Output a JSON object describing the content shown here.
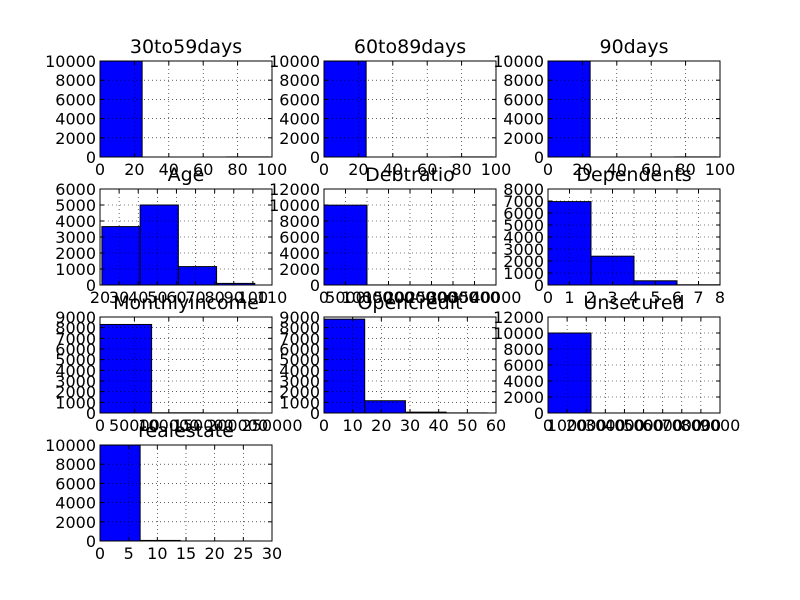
{
  "chart_data": [
    {
      "type": "bar",
      "title": "30to59days",
      "xlim": [
        0,
        100
      ],
      "ylim": [
        0,
        10000
      ],
      "xticks": [
        "0",
        "20",
        "40",
        "60",
        "80",
        "100"
      ],
      "yticks": [
        "0",
        "2000",
        "4000",
        "6000",
        "8000",
        "10000"
      ],
      "bins": [
        [
          0,
          24.5,
          9990
        ],
        [
          73.5,
          98,
          10
        ]
      ],
      "grid": true
    },
    {
      "type": "bar",
      "title": "60to89days",
      "xlim": [
        0,
        100
      ],
      "ylim": [
        0,
        10000
      ],
      "xticks": [
        "0",
        "20",
        "40",
        "60",
        "80",
        "100"
      ],
      "yticks": [
        "0",
        "2000",
        "4000",
        "6000",
        "8000",
        "10000"
      ],
      "bins": [
        [
          0,
          24.5,
          9990
        ],
        [
          73.5,
          98,
          10
        ]
      ],
      "grid": true
    },
    {
      "type": "bar",
      "title": "90days",
      "xlim": [
        0,
        100
      ],
      "ylim": [
        0,
        10000
      ],
      "xticks": [
        "0",
        "20",
        "40",
        "60",
        "80",
        "100"
      ],
      "yticks": [
        "0",
        "2000",
        "4000",
        "6000",
        "8000",
        "10000"
      ],
      "bins": [
        [
          0,
          24.5,
          9990
        ],
        [
          73.5,
          98,
          10
        ]
      ],
      "grid": true
    },
    {
      "type": "bar",
      "title": "Age",
      "xlim": [
        20,
        110
      ],
      "ylim": [
        0,
        6000
      ],
      "xticks": [
        "20",
        "30",
        "40",
        "50",
        "60",
        "70",
        "80",
        "90",
        "100",
        "110"
      ],
      "yticks": [
        "0",
        "1000",
        "2000",
        "3000",
        "4000",
        "5000",
        "6000"
      ],
      "bins": [
        [
          21,
          41,
          3650
        ],
        [
          41,
          61,
          5000
        ],
        [
          61,
          81,
          1150
        ],
        [
          81,
          101,
          100
        ]
      ],
      "grid": true
    },
    {
      "type": "bar",
      "title": "Debtratio",
      "xlim": [
        0,
        40000
      ],
      "ylim": [
        0,
        12000
      ],
      "xticks": [
        "0",
        "5000",
        "10000",
        "15000",
        "20000",
        "25000",
        "30000",
        "35000",
        "40000"
      ],
      "yticks": [
        "0",
        "2000",
        "4000",
        "6000",
        "8000",
        "10000",
        "12000"
      ],
      "bins": [
        [
          0,
          10000,
          9980
        ],
        [
          10000,
          20000,
          10
        ],
        [
          20000,
          30000,
          6
        ],
        [
          30000,
          40000,
          4
        ]
      ],
      "grid": true
    },
    {
      "type": "bar",
      "title": "Dependents",
      "xlim": [
        0,
        8
      ],
      "ylim": [
        0,
        8000
      ],
      "xticks": [
        "0",
        "1",
        "2",
        "3",
        "4",
        "5",
        "6",
        "7",
        "8"
      ],
      "yticks": [
        "0",
        "1000",
        "2000",
        "3000",
        "4000",
        "5000",
        "6000",
        "7000",
        "8000"
      ],
      "bins": [
        [
          0,
          2,
          6950
        ],
        [
          2,
          4,
          2400
        ],
        [
          4,
          6,
          350
        ],
        [
          6,
          8,
          20
        ]
      ],
      "grid": true
    },
    {
      "type": "bar",
      "title": "Monthlyincome",
      "xlim": [
        0,
        250000
      ],
      "ylim": [
        0,
        9000
      ],
      "xticks": [
        "0",
        "50000",
        "100000",
        "150000",
        "200000",
        "250000"
      ],
      "yticks": [
        "0",
        "1000",
        "2000",
        "3000",
        "4000",
        "5000",
        "6000",
        "7000",
        "8000",
        "9000"
      ],
      "bins": [
        [
          0,
          75000,
          8300
        ],
        [
          75000,
          150000,
          20
        ],
        [
          150000,
          225000,
          5
        ]
      ],
      "grid": true
    },
    {
      "type": "bar",
      "title": "Opencredit",
      "xlim": [
        0,
        60
      ],
      "ylim": [
        0,
        9000
      ],
      "xticks": [
        "0",
        "10",
        "20",
        "30",
        "40",
        "50",
        "60"
      ],
      "yticks": [
        "0",
        "1000",
        "2000",
        "3000",
        "4000",
        "5000",
        "6000",
        "7000",
        "8000",
        "9000"
      ],
      "bins": [
        [
          0,
          14.2,
          8800
        ],
        [
          14.2,
          28.4,
          1150
        ],
        [
          28.4,
          42.6,
          80
        ],
        [
          42.6,
          56.8,
          10
        ]
      ],
      "grid": true
    },
    {
      "type": "bar",
      "title": "Unsecured",
      "xlim": [
        0,
        9000
      ],
      "ylim": [
        0,
        12000
      ],
      "xticks": [
        "0",
        "1000",
        "2000",
        "3000",
        "4000",
        "5000",
        "6000",
        "7000",
        "8000",
        "9000"
      ],
      "yticks": [
        "0",
        "2000",
        "4000",
        "6000",
        "8000",
        "10000",
        "12000"
      ],
      "bins": [
        [
          0,
          2250,
          10000
        ],
        [
          2250,
          4500,
          3
        ],
        [
          4500,
          6750,
          2
        ],
        [
          6750,
          9000,
          1
        ]
      ],
      "grid": true
    },
    {
      "type": "bar",
      "title": "realestate",
      "xlim": [
        0,
        30
      ],
      "ylim": [
        0,
        10000
      ],
      "xticks": [
        "0",
        "5",
        "10",
        "15",
        "20",
        "25",
        "30"
      ],
      "yticks": [
        "0",
        "2000",
        "4000",
        "6000",
        "8000",
        "10000"
      ],
      "bins": [
        [
          0,
          7,
          9990
        ],
        [
          7,
          14,
          60
        ],
        [
          14,
          21,
          5
        ],
        [
          21,
          28,
          2
        ]
      ],
      "grid": true
    }
  ],
  "colors": {
    "bar_fill": "#0000ff",
    "bar_edge": "#000000",
    "grid": "#000000",
    "axes": "#000000",
    "background": "#ffffff"
  }
}
